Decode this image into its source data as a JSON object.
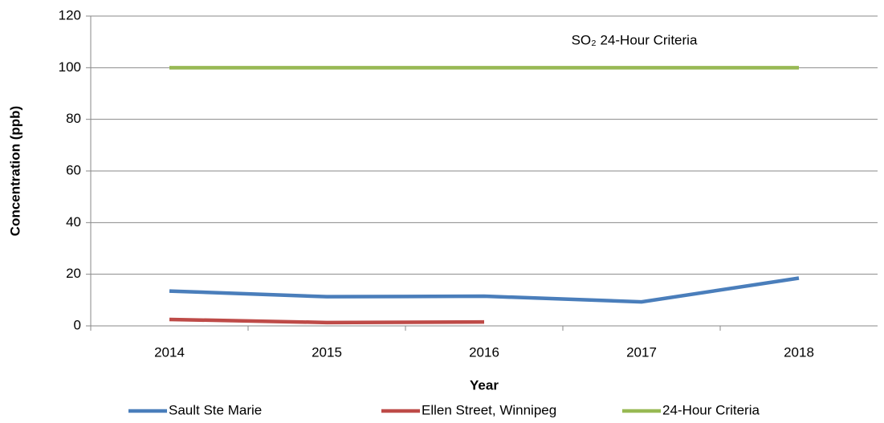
{
  "chart_data": {
    "type": "line",
    "x_label": "Year",
    "y_label": "Concentration (ppb)",
    "annotation": "SO₂ 24-Hour Criteria",
    "categories": [
      "2014",
      "2015",
      "2016",
      "2017",
      "2018"
    ],
    "series": [
      {
        "name": "Sault Ste Marie",
        "color": "#4a7ebb",
        "values": [
          13.5,
          11.3,
          11.5,
          9.3,
          18.5
        ]
      },
      {
        "name": "Ellen Street, Winnipeg",
        "color": "#be4b48",
        "values": [
          2.5,
          1.3,
          1.5,
          null,
          null
        ]
      },
      {
        "name": "24-Hour Criteria",
        "color": "#98b954",
        "values": [
          100,
          100,
          100,
          100,
          100
        ]
      }
    ],
    "ylim": [
      0,
      120
    ],
    "yticks": [
      0,
      20,
      40,
      60,
      80,
      100,
      120
    ],
    "grid": true,
    "legend": "bottom"
  }
}
